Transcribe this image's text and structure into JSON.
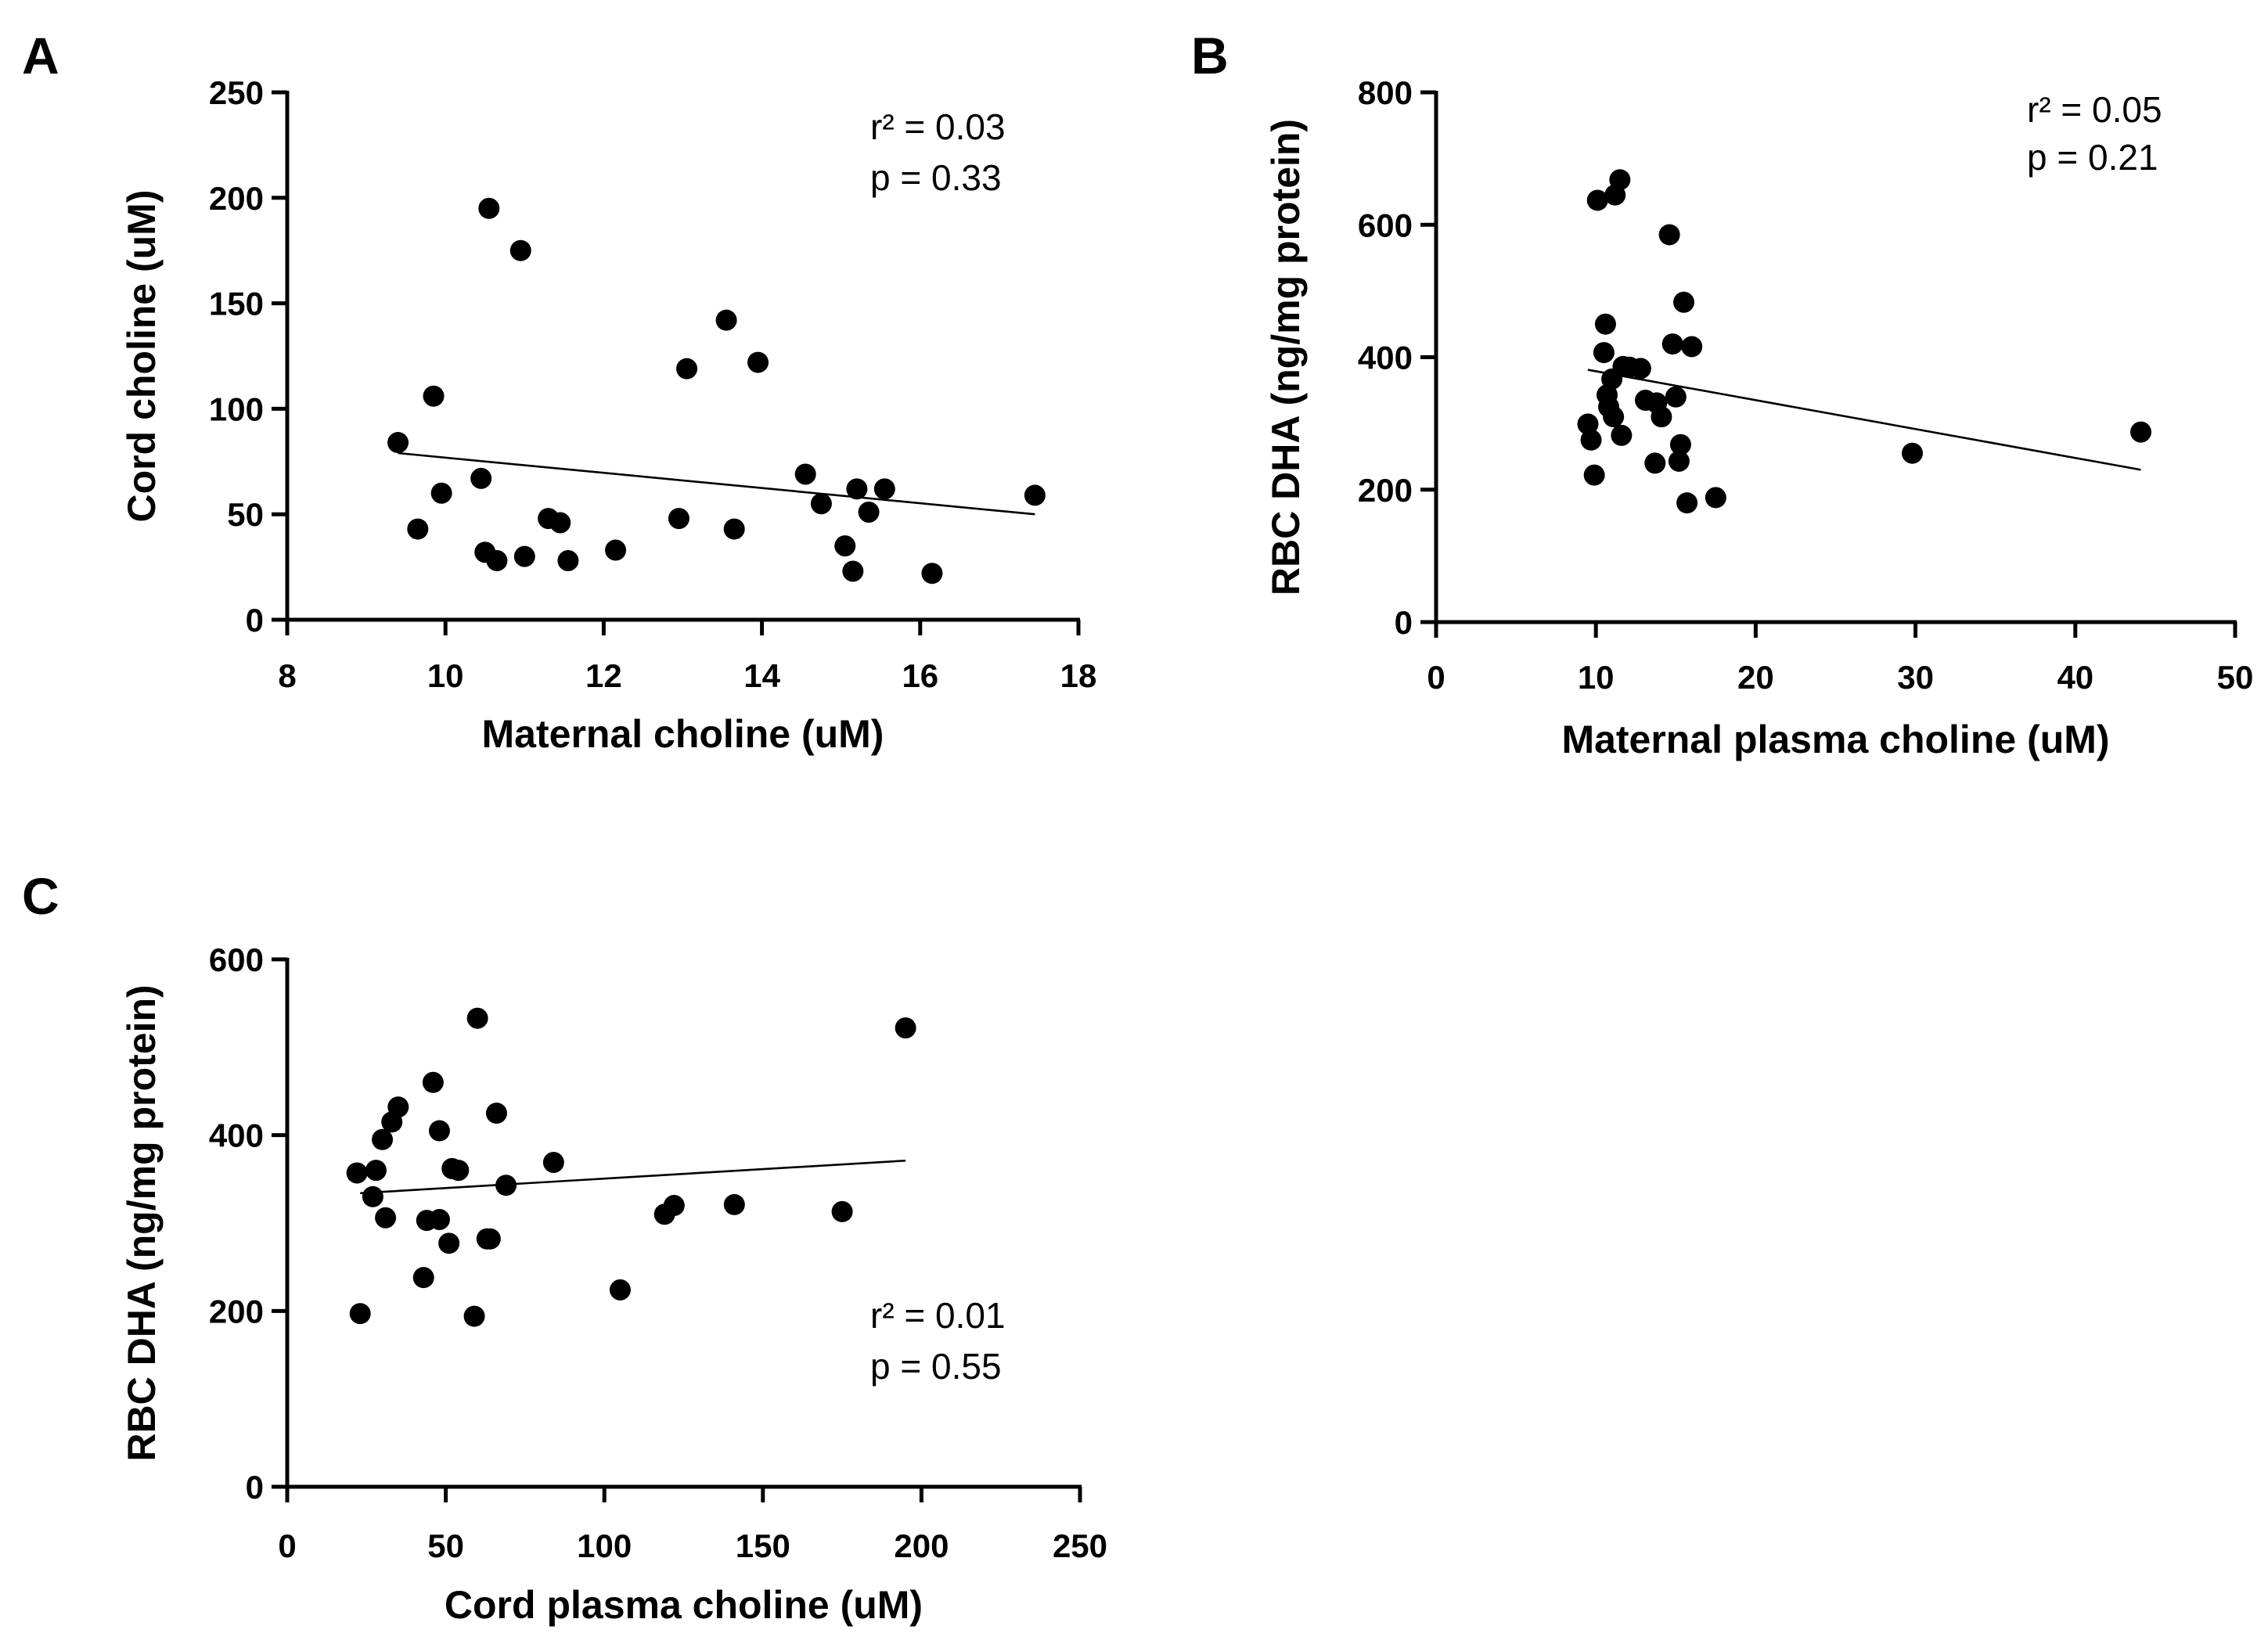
{
  "chart_data": [
    {
      "type": "scatter",
      "panel_label": "A",
      "xlabel": "Maternal choline (uM)",
      "ylabel": "Cord choline (uM)",
      "xlim": [
        8,
        18
      ],
      "ylim": [
        0,
        250
      ],
      "xticks": [
        8,
        10,
        12,
        14,
        16,
        18
      ],
      "yticks": [
        0,
        50,
        100,
        150,
        200,
        250
      ],
      "x": [
        9.4,
        9.65,
        9.85,
        9.95,
        10.45,
        10.5,
        10.55,
        10.65,
        10.95,
        11.0,
        11.3,
        11.45,
        11.55,
        12.15,
        12.95,
        13.05,
        13.55,
        13.65,
        13.95,
        14.55,
        14.75,
        15.05,
        15.15,
        15.2,
        15.35,
        15.55,
        16.15,
        17.45
      ],
      "y": [
        84,
        43,
        106,
        60,
        67,
        32,
        195,
        28,
        175,
        30,
        48,
        46,
        28,
        33,
        48,
        119,
        142,
        43,
        122,
        69,
        55,
        35,
        23,
        62,
        51,
        62,
        22,
        59
      ],
      "trendline": {
        "x": [
          9.4,
          17.45
        ],
        "y": [
          79,
          50
        ]
      },
      "stats": {
        "r2": "r² = 0.03",
        "p": "p = 0.33"
      },
      "stats_position": "top-right"
    },
    {
      "type": "scatter",
      "panel_label": "B",
      "xlabel": "Maternal plasma choline (uM)",
      "ylabel": "RBC DHA (ng/mg protein)",
      "xlim": [
        0,
        50
      ],
      "ylim": [
        0,
        800
      ],
      "xticks": [
        0,
        10,
        20,
        30,
        40,
        50
      ],
      "yticks": [
        0,
        200,
        400,
        600,
        800
      ],
      "x": [
        9.5,
        9.7,
        9.9,
        10.1,
        10.5,
        10.6,
        10.7,
        10.8,
        11.0,
        11.1,
        11.2,
        11.5,
        11.6,
        11.7,
        12.1,
        12.8,
        13.1,
        13.7,
        13.8,
        14.1,
        14.6,
        14.8,
        15.0,
        15.2,
        15.3,
        15.5,
        15.7,
        16.0,
        17.5,
        29.8,
        44.1
      ],
      "y": [
        299,
        275,
        222,
        637,
        407,
        450,
        343,
        325,
        367,
        310,
        645,
        668,
        282,
        386,
        385,
        383,
        335,
        240,
        331,
        310,
        585,
        420,
        340,
        243,
        268,
        483,
        180,
        416,
        188,
        255,
        287
      ],
      "trendline": {
        "x": [
          9.5,
          44.1
        ],
        "y": [
          381,
          230
        ]
      },
      "stats": {
        "r2": "r² = 0.05",
        "p": "p = 0.21"
      },
      "stats_position": "top-right"
    },
    {
      "type": "scatter",
      "panel_label": "C",
      "xlabel": "Cord plasma choline (uM)",
      "ylabel": "RBC DHA (ng/mg protein)",
      "xlim": [
        0,
        250
      ],
      "ylim": [
        0,
        600
      ],
      "xticks": [
        0,
        50,
        100,
        150,
        200,
        250
      ],
      "yticks": [
        0,
        200,
        400,
        600
      ],
      "x": [
        22,
        23,
        27,
        28,
        30,
        31,
        33,
        35,
        43,
        44,
        46,
        48,
        48,
        51,
        52,
        54,
        59,
        60,
        63,
        64,
        66,
        69,
        84,
        105,
        119,
        122,
        141,
        175,
        195
      ],
      "y": [
        357,
        197,
        330,
        360,
        395,
        306,
        415,
        432,
        238,
        303,
        460,
        405,
        304,
        277,
        362,
        360,
        194,
        533,
        282,
        282,
        425,
        343,
        369,
        224,
        310,
        320,
        321,
        313,
        522
      ],
      "trendline": {
        "x": [
          23,
          195
        ],
        "y": [
          334,
          371
        ]
      },
      "stats": {
        "r2": "r² = 0.01",
        "p": "p = 0.55"
      },
      "stats_position": "bottom-right"
    }
  ]
}
